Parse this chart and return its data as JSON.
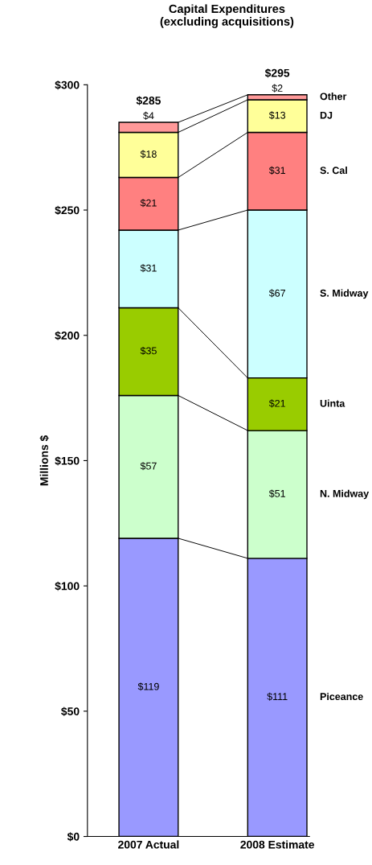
{
  "chart_data": {
    "type": "bar",
    "stacked": true,
    "title": "Capital Expenditures\n(excluding acquisitions)",
    "ylabel": "Millions $",
    "categories": [
      "2007 Actual",
      "2008 Estimate"
    ],
    "series": [
      {
        "name": "Piceance",
        "color": "#9999ff",
        "values": [
          119,
          111
        ],
        "value_labels": [
          "$119",
          "$111"
        ]
      },
      {
        "name": "N. Midway",
        "color": "#ccffcc",
        "values": [
          57,
          51
        ],
        "value_labels": [
          "$57",
          "$51"
        ]
      },
      {
        "name": "Uinta",
        "color": "#99cc00",
        "values": [
          35,
          21
        ],
        "value_labels": [
          "$35",
          "$21"
        ]
      },
      {
        "name": "S. Midway",
        "color": "#ccffff",
        "values": [
          31,
          67
        ],
        "value_labels": [
          "$31",
          "$67"
        ]
      },
      {
        "name": "S. Cal",
        "color": "#ff8080",
        "values": [
          21,
          31
        ],
        "value_labels": [
          "$21",
          "$31"
        ]
      },
      {
        "name": "DJ",
        "color": "#ffff99",
        "values": [
          18,
          13
        ],
        "value_labels": [
          "$18",
          "$13"
        ]
      },
      {
        "name": "Other",
        "color": "#ff9999",
        "values": [
          4,
          2
        ],
        "value_labels": [
          "$4",
          "$2"
        ]
      }
    ],
    "totals": [
      "$285",
      "$295"
    ],
    "ylim": [
      0,
      300
    ],
    "yticks": [
      {
        "value": 0,
        "label": "$0"
      },
      {
        "value": 50,
        "label": "$50"
      },
      {
        "value": 100,
        "label": "$100"
      },
      {
        "value": 150,
        "label": "$150"
      },
      {
        "value": 200,
        "label": "$200"
      },
      {
        "value": 250,
        "label": "$250"
      },
      {
        "value": 300,
        "label": "$300"
      }
    ],
    "grid": false,
    "legend": false
  }
}
